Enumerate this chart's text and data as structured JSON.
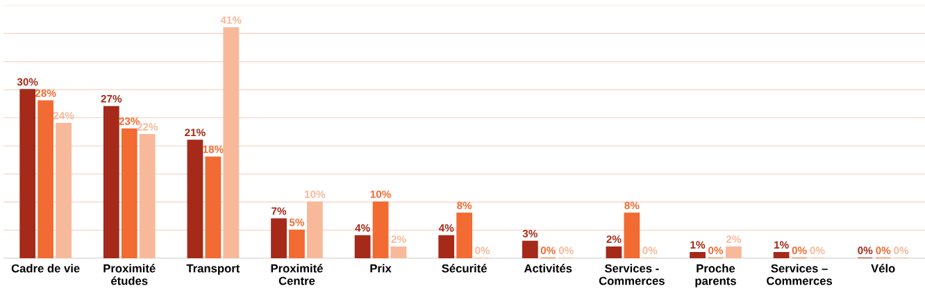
{
  "chart_data": {
    "type": "bar",
    "categories": [
      "Cadre de vie",
      "Proximité\nétudes",
      "Transport",
      "Proximité\nCentre",
      "Prix",
      "Sécurité",
      "Activités",
      "Services -\nCommerces",
      "Proche\nparents",
      "Services –\nCommerces",
      "Vélo"
    ],
    "series": [
      {
        "color": "#a52a1a",
        "values": [
          30,
          27,
          21,
          7,
          4,
          4,
          3,
          2,
          1,
          1,
          0
        ],
        "value_labels": [
          "30%",
          "27%",
          "21%",
          "7%",
          "4%",
          "4%",
          "3%",
          "2%",
          "1%",
          "1%",
          "0%"
        ]
      },
      {
        "color": "#f26b32",
        "values": [
          28,
          23,
          18,
          5,
          10,
          8,
          0,
          8,
          0,
          0,
          0
        ],
        "value_labels": [
          "28%",
          "23%",
          "18%",
          "5%",
          "10%",
          "8%",
          "0%",
          "8%",
          "0%",
          "0%",
          "0%"
        ]
      },
      {
        "color": "#f8b99a",
        "values": [
          24,
          22,
          41,
          10,
          2,
          0,
          0,
          0,
          2,
          0,
          0
        ],
        "value_labels": [
          "24%",
          "22%",
          "41%",
          "10%",
          "2%",
          "0%",
          "0%",
          "0%",
          "2%",
          "0%",
          "0%"
        ]
      }
    ],
    "ylim": [
      0,
      45
    ],
    "yticks": [
      {
        "value": 0,
        "label": null
      },
      {
        "value": 5,
        "label": null
      },
      {
        "value": 10,
        "label": null
      },
      {
        "value": 15,
        "label": null
      },
      {
        "value": 20,
        "label": null
      },
      {
        "value": 25,
        "label": null
      },
      {
        "value": 30,
        "label": null
      },
      {
        "value": 35,
        "label": null
      },
      {
        "value": 40,
        "label": null
      },
      {
        "value": 45,
        "label": null
      }
    ],
    "grid": "y",
    "tick_labels": "x"
  }
}
